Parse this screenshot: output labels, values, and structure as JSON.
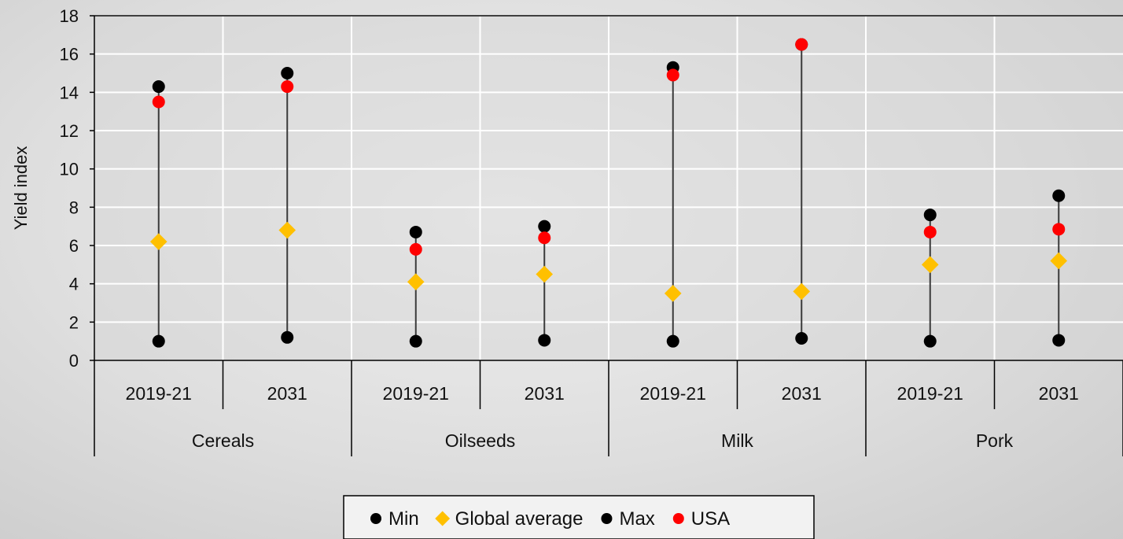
{
  "chart_data": {
    "type": "scatter",
    "title": "",
    "ylabel": "Yield index",
    "xlabel": "",
    "ylim": [
      0,
      18
    ],
    "ytick_step": 2,
    "grid": true,
    "legend_position": "bottom",
    "groups": [
      "Cereals",
      "Oilseeds",
      "Milk",
      "Pork"
    ],
    "periods": [
      "2019-21",
      "2031"
    ],
    "x": [
      "Cereals 2019-21",
      "Cereals 2031",
      "Oilseeds 2019-21",
      "Oilseeds 2031",
      "Milk 2019-21",
      "Milk 2031",
      "Pork 2019-21",
      "Pork 2031"
    ],
    "series": [
      {
        "name": "Min",
        "marker": "circle",
        "color": "#000000",
        "values": [
          1.0,
          1.2,
          1.0,
          1.05,
          1.0,
          1.15,
          1.0,
          1.05
        ]
      },
      {
        "name": "Global average",
        "marker": "diamond",
        "color": "#FFC000",
        "values": [
          6.2,
          6.8,
          4.1,
          4.5,
          3.5,
          3.6,
          5.0,
          5.2
        ]
      },
      {
        "name": "Max",
        "marker": "circle",
        "color": "#000000",
        "values": [
          14.3,
          15.0,
          6.7,
          7.0,
          15.3,
          16.5,
          7.6,
          8.6
        ]
      },
      {
        "name": "USA",
        "marker": "circle",
        "color": "#FF0000",
        "values": [
          13.5,
          14.3,
          5.8,
          6.4,
          14.9,
          16.5,
          6.7,
          6.85
        ]
      }
    ]
  }
}
